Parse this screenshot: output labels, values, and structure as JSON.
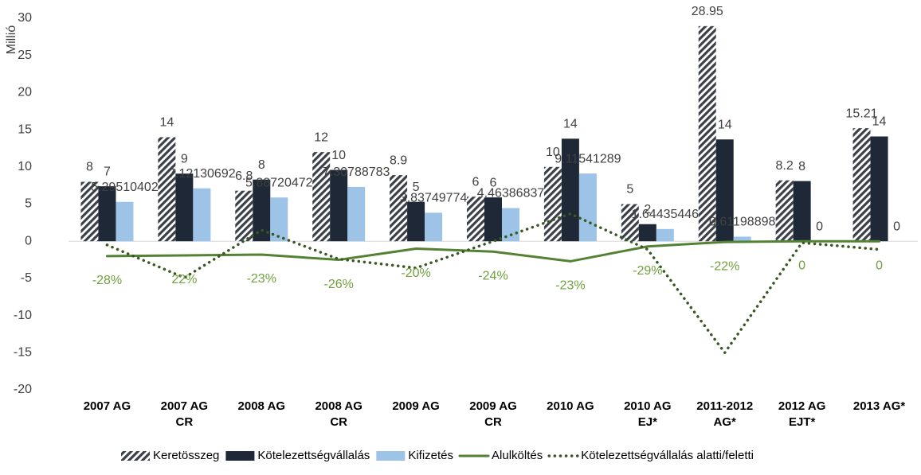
{
  "chart_data": {
    "type": "bar",
    "y_axis_label": "Millió",
    "categories": [
      [
        "2007 AG"
      ],
      [
        "2007 AG",
        "CR"
      ],
      [
        "2008 AG"
      ],
      [
        "2008 AG",
        "CR"
      ],
      [
        "2009 AG"
      ],
      [
        "2009 AG",
        "CR"
      ],
      [
        "2010 AG"
      ],
      [
        "2010 AG",
        "EJ*"
      ],
      [
        "2011-2012",
        "AG*"
      ],
      [
        "2012 AG",
        "EJT*"
      ],
      [
        "2013 AG*"
      ]
    ],
    "ylim": [
      -20,
      30
    ],
    "yticks": [
      -20,
      -15,
      -10,
      -5,
      0,
      5,
      10,
      15,
      20,
      25,
      30
    ],
    "grid": false,
    "legend": "bottom",
    "series": [
      {
        "name": "Keretösszeg",
        "kind": "bar",
        "pattern": "hatch",
        "color": "#3a3f48",
        "values": [
          8,
          14,
          6.8,
          12,
          8.9,
          6,
          10,
          5,
          28.95,
          8.2,
          15.21
        ]
      },
      {
        "name": "Kötelezettségvállalás",
        "kind": "bar",
        "color": "#1f2836",
        "values": [
          7.4,
          9.1,
          8.3,
          9.6,
          5.3,
          5.9,
          13.8,
          2.3,
          13.7,
          8.1,
          14.1
        ],
        "value_labels": [
          "7",
          "9",
          "8",
          "10",
          "5",
          "6",
          "14",
          "2",
          "14",
          "8",
          "14"
        ]
      },
      {
        "name": "Kifizetés",
        "kind": "bar",
        "color": "#9dc3e6",
        "values": [
          5.29510402,
          7.12130692,
          5.88720472,
          7.30788783,
          3.83749774,
          4.46386837,
          9.11541289,
          1.64435446,
          0.61198898,
          0,
          0
        ]
      },
      {
        "name": "Alulköltés",
        "kind": "line",
        "color": "#548235",
        "values": [
          -2.0,
          -1.9,
          -1.8,
          -2.5,
          -1.0,
          -1.4,
          -2.7,
          -0.7,
          -0.1,
          0,
          0
        ]
      },
      {
        "name": "Kötelezettségvállalás alatti/feletti",
        "kind": "line",
        "dash": true,
        "color": "#385723",
        "values": [
          -0.5,
          -4.9,
          1.5,
          -2.4,
          -3.6,
          0,
          3.7,
          -1.1,
          -15,
          -0.2,
          -1.1
        ]
      }
    ],
    "annotations": [
      "-28%",
      "22%",
      "-23%",
      "-26%",
      "-20%",
      "-24%",
      "-23%",
      "-29%",
      "-22%",
      "0",
      "0"
    ],
    "annotation_color": "#70a03c"
  }
}
